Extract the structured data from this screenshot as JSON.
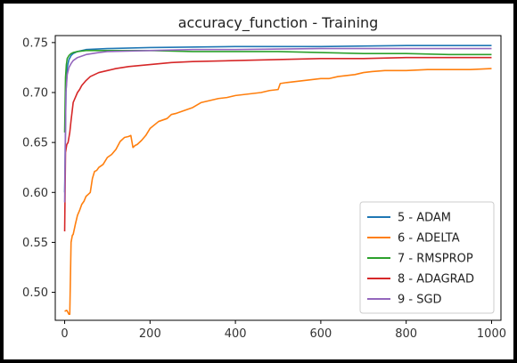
{
  "chart_data": {
    "type": "line",
    "title": "accuracy_function - Training",
    "xlabel": "",
    "ylabel": "",
    "xlim": [
      -22,
      1022
    ],
    "ylim": [
      0.472,
      0.757
    ],
    "xticks": [
      0,
      200,
      400,
      600,
      800,
      1000
    ],
    "yticks": [
      0.5,
      0.55,
      0.6,
      0.65,
      0.7,
      0.75
    ],
    "xtick_labels": [
      "0",
      "200",
      "400",
      "600",
      "800",
      "1000"
    ],
    "ytick_labels": [
      "0.50",
      "0.55",
      "0.60",
      "0.65",
      "0.70",
      "0.75"
    ],
    "legend_position": "lower-right",
    "grid": false,
    "series": [
      {
        "name": "5 - ADAM",
        "color": "#1f77b4",
        "x": [
          0,
          3,
          6,
          10,
          15,
          20,
          30,
          50,
          100,
          200,
          400,
          600,
          800,
          1000
        ],
        "y": [
          0.6,
          0.7,
          0.725,
          0.733,
          0.737,
          0.739,
          0.741,
          0.743,
          0.744,
          0.745,
          0.746,
          0.746,
          0.747,
          0.747
        ]
      },
      {
        "name": "6 - ADELTA",
        "color": "#ff7f0e",
        "x": [
          0,
          5,
          10,
          12,
          15,
          18,
          20,
          25,
          30,
          35,
          40,
          45,
          50,
          55,
          60,
          65,
          70,
          75,
          80,
          90,
          100,
          110,
          120,
          130,
          140,
          150,
          155,
          160,
          165,
          170,
          180,
          190,
          200,
          220,
          240,
          250,
          260,
          280,
          300,
          320,
          340,
          360,
          380,
          400,
          420,
          440,
          460,
          480,
          500,
          505,
          520,
          540,
          560,
          580,
          600,
          620,
          640,
          660,
          680,
          700,
          720,
          750,
          800,
          850,
          900,
          950,
          1000
        ],
        "y": [
          0.481,
          0.482,
          0.478,
          0.478,
          0.55,
          0.557,
          0.558,
          0.568,
          0.577,
          0.582,
          0.588,
          0.591,
          0.596,
          0.598,
          0.6,
          0.614,
          0.621,
          0.622,
          0.625,
          0.628,
          0.635,
          0.638,
          0.643,
          0.651,
          0.655,
          0.656,
          0.657,
          0.645,
          0.647,
          0.648,
          0.652,
          0.657,
          0.664,
          0.671,
          0.674,
          0.678,
          0.679,
          0.682,
          0.685,
          0.69,
          0.692,
          0.694,
          0.695,
          0.697,
          0.698,
          0.699,
          0.7,
          0.702,
          0.703,
          0.709,
          0.71,
          0.711,
          0.712,
          0.713,
          0.714,
          0.714,
          0.716,
          0.717,
          0.718,
          0.72,
          0.721,
          0.722,
          0.722,
          0.723,
          0.723,
          0.723,
          0.724
        ]
      },
      {
        "name": "7 - RMSPROP",
        "color": "#2ca02c",
        "x": [
          0,
          2,
          4,
          6,
          10,
          15,
          20,
          30,
          50,
          100,
          200,
          300,
          400,
          500,
          600,
          700,
          800,
          900,
          1000
        ],
        "y": [
          0.66,
          0.715,
          0.728,
          0.734,
          0.737,
          0.739,
          0.74,
          0.741,
          0.742,
          0.742,
          0.742,
          0.741,
          0.741,
          0.741,
          0.74,
          0.739,
          0.739,
          0.738,
          0.738
        ]
      },
      {
        "name": "8 - ADAGRAD",
        "color": "#d62728",
        "x": [
          0,
          2,
          5,
          8,
          12,
          15,
          20,
          25,
          30,
          35,
          40,
          50,
          60,
          80,
          100,
          120,
          150,
          200,
          250,
          300,
          400,
          500,
          600,
          700,
          800,
          900,
          1000
        ],
        "y": [
          0.561,
          0.64,
          0.648,
          0.65,
          0.66,
          0.672,
          0.69,
          0.695,
          0.7,
          0.703,
          0.707,
          0.712,
          0.716,
          0.72,
          0.722,
          0.724,
          0.726,
          0.728,
          0.73,
          0.731,
          0.732,
          0.733,
          0.734,
          0.734,
          0.735,
          0.735,
          0.735
        ]
      },
      {
        "name": "9 - SGD",
        "color": "#9467bd",
        "x": [
          0,
          3,
          6,
          10,
          15,
          20,
          30,
          50,
          80,
          100,
          200,
          300,
          400,
          600,
          800,
          1000
        ],
        "y": [
          0.59,
          0.7,
          0.718,
          0.725,
          0.729,
          0.732,
          0.735,
          0.738,
          0.74,
          0.741,
          0.742,
          0.743,
          0.743,
          0.744,
          0.744,
          0.744
        ]
      }
    ]
  }
}
